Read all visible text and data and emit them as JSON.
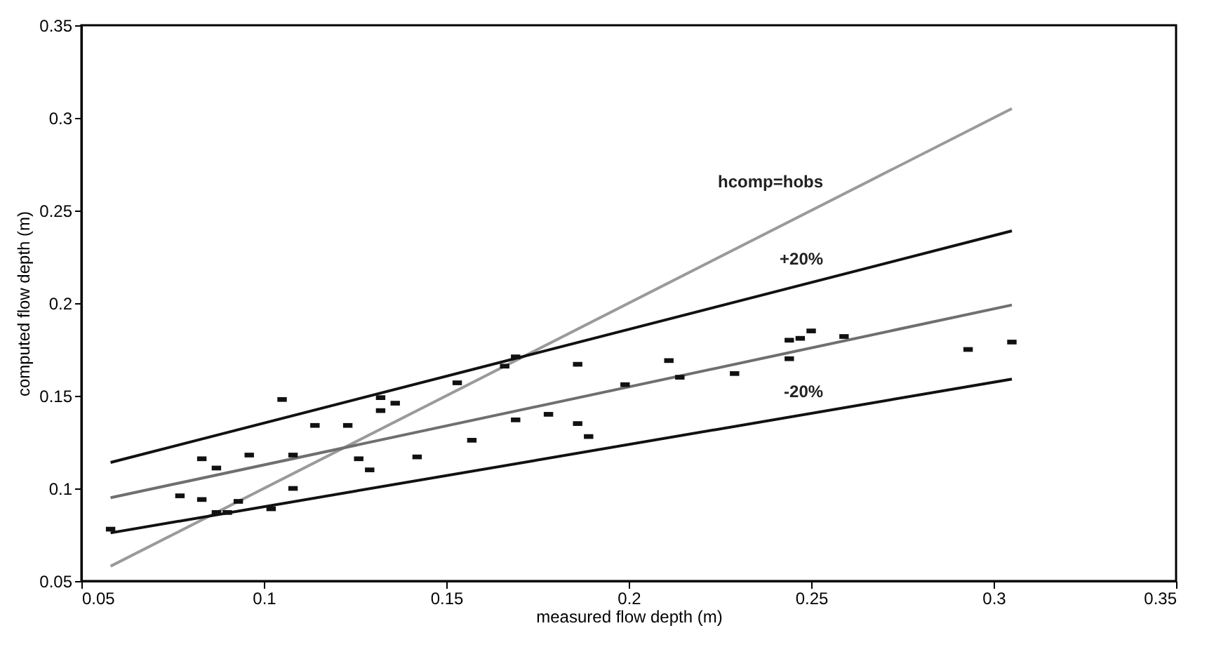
{
  "chart_data": {
    "type": "scatter",
    "xlabel": "measured flow depth (m)",
    "ylabel": "computed flow depth (m)",
    "xlim": [
      0.05,
      0.35
    ],
    "xticks": [
      0.05,
      0.1,
      0.15,
      0.2,
      0.25,
      0.3,
      0.35
    ],
    "ylim": [
      0.05,
      0.35
    ],
    "yticks": [
      0.05,
      0.1,
      0.15,
      0.2,
      0.25,
      0.3,
      0.35
    ],
    "grid": false,
    "legend": false,
    "marker": "square",
    "series": [
      {
        "color": "#111111",
        "x": [
          0.058,
          0.077,
          0.083,
          0.083,
          0.087,
          0.087,
          0.09,
          0.093,
          0.096,
          0.102,
          0.105,
          0.108,
          0.108,
          0.114,
          0.123,
          0.126,
          0.129,
          0.132,
          0.132,
          0.136,
          0.142,
          0.153,
          0.157,
          0.166,
          0.169,
          0.169,
          0.178,
          0.186,
          0.186,
          0.189,
          0.199,
          0.211,
          0.214,
          0.229,
          0.244,
          0.244,
          0.247,
          0.25,
          0.259,
          0.293,
          0.305
        ],
        "values": [
          0.078,
          0.096,
          0.116,
          0.094,
          0.111,
          0.087,
          0.087,
          0.093,
          0.118,
          0.089,
          0.148,
          0.118,
          0.1,
          0.134,
          0.134,
          0.116,
          0.11,
          0.149,
          0.142,
          0.146,
          0.117,
          0.157,
          0.126,
          0.166,
          0.171,
          0.137,
          0.14,
          0.167,
          0.135,
          0.128,
          0.156,
          0.169,
          0.16,
          0.162,
          0.17,
          0.18,
          0.181,
          0.185,
          0.182,
          0.175,
          0.179
        ]
      },
      {
        "type": "line",
        "name": "hcomp=hobs",
        "color": "#9a9a9a",
        "marker": "none",
        "x": [
          0.058,
          0.305
        ],
        "values": [
          0.058,
          0.305
        ]
      },
      {
        "type": "line",
        "color": "#6f6f6f",
        "marker": "none",
        "x": [
          0.058,
          0.305
        ],
        "values": [
          0.095,
          0.199
        ]
      },
      {
        "type": "line",
        "name": "+20%",
        "color": "#111111",
        "marker": "none",
        "x": [
          0.058,
          0.305
        ],
        "values": [
          0.114,
          0.239
        ]
      },
      {
        "type": "line",
        "name": "-20%",
        "color": "#111111",
        "marker": "none",
        "x": [
          0.058,
          0.305
        ],
        "values": [
          0.076,
          0.159
        ]
      }
    ]
  }
}
